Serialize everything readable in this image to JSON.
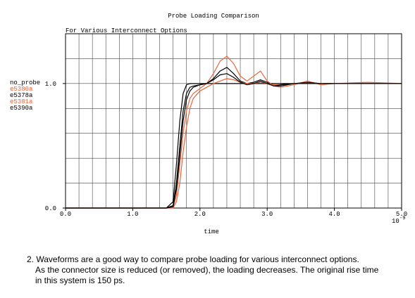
{
  "chart_data": {
    "type": "line",
    "title": "Probe Loading Comparison",
    "subtitle": "For Various Interconnect Options",
    "x_label": "time",
    "x_scale": {
      "base": "10",
      "exponent": "-9"
    },
    "x": [
      0,
      1.5,
      1.6,
      1.65,
      1.7,
      1.75,
      1.8,
      1.85,
      1.9,
      2.0,
      2.1,
      2.2,
      2.3,
      2.4,
      2.5,
      2.6,
      2.7,
      2.8,
      2.9,
      3.0,
      3.1,
      3.2,
      3.4,
      3.6,
      3.8,
      4.0,
      4.5,
      5.0
    ],
    "series": [
      {
        "name": "no_probe",
        "color": "#000000",
        "values": [
          0,
          0,
          0.05,
          0.35,
          0.7,
          0.92,
          0.99,
          1,
          1,
          1,
          1,
          1,
          1,
          1,
          1,
          1,
          1,
          1,
          1,
          1,
          1,
          1,
          1,
          1,
          1,
          1,
          1,
          1
        ]
      },
      {
        "name": "e5380a",
        "color": "#e8643c",
        "values": [
          0,
          0,
          0,
          0.1,
          0.35,
          0.6,
          0.78,
          0.88,
          0.92,
          0.96,
          1.0,
          1.08,
          1.18,
          1.22,
          1.16,
          1.06,
          1.02,
          1.06,
          1.1,
          1.02,
          0.98,
          0.97,
          0.99,
          1.02,
          0.99,
          1.0,
          1.01,
          1.0
        ]
      },
      {
        "name": "e5378a",
        "color": "#000000",
        "values": [
          0,
          0,
          0.02,
          0.2,
          0.5,
          0.78,
          0.92,
          0.97,
          0.98,
          0.99,
          1.0,
          1.04,
          1.1,
          1.13,
          1.08,
          1.02,
          1.0,
          1.01,
          1.03,
          1.01,
          0.98,
          0.98,
          1.0,
          1.01,
          1.0,
          1.0,
          1.0,
          1.0
        ]
      },
      {
        "name": "e5381a",
        "color": "#e8643c",
        "values": [
          0,
          0,
          0,
          0.05,
          0.2,
          0.45,
          0.65,
          0.8,
          0.88,
          0.94,
          0.97,
          1.0,
          1.02,
          1.04,
          1.03,
          1.01,
          1.0,
          1.0,
          1.01,
          1.0,
          0.99,
          0.99,
          1.0,
          1.0,
          1.0,
          1.0,
          1.0,
          1.0
        ]
      },
      {
        "name": "e5390a",
        "color": "#000000",
        "values": [
          0,
          0,
          0.01,
          0.15,
          0.42,
          0.7,
          0.87,
          0.94,
          0.97,
          0.99,
          1.0,
          1.03,
          1.07,
          1.08,
          1.05,
          1.01,
          0.99,
          1.0,
          1.02,
          1.0,
          0.98,
          0.99,
          1.0,
          1.0,
          1.0,
          1.0,
          1.0,
          1.0
        ]
      }
    ],
    "xlim": [
      0,
      5
    ],
    "ylim": [
      0,
      1.4
    ],
    "xticks": [
      {
        "value": 0,
        "label": "0.0"
      },
      {
        "value": 1,
        "label": "1.0"
      },
      {
        "value": 2,
        "label": "2.0"
      },
      {
        "value": 3,
        "label": "3.0"
      },
      {
        "value": 4,
        "label": "4.0"
      },
      {
        "value": 5,
        "label": "5.0"
      }
    ],
    "yticks": [
      {
        "value": 0,
        "label": "0.0"
      },
      {
        "value": 1,
        "label": "1.0"
      }
    ],
    "xgrid": [
      0,
      0.2,
      0.4,
      0.6,
      0.8,
      1.0,
      1.2,
      1.4,
      1.6,
      1.8,
      2.0,
      2.2,
      2.4,
      2.6,
      2.8,
      3.0,
      3.2,
      3.4,
      3.6,
      3.8,
      4.0,
      4.2,
      4.4,
      4.6,
      4.8,
      5.0
    ],
    "ygrid": [
      0,
      0.2,
      0.4,
      0.6,
      0.8,
      1.0,
      1.2,
      1.4
    ],
    "legend": "left"
  },
  "caption": [
    "2. Waveforms are a good way to compare probe loading for various interconnect options.",
    "As the connector size is reduced (or removed), the loading decreases. The original rise time",
    "in this system is 150 ps."
  ]
}
